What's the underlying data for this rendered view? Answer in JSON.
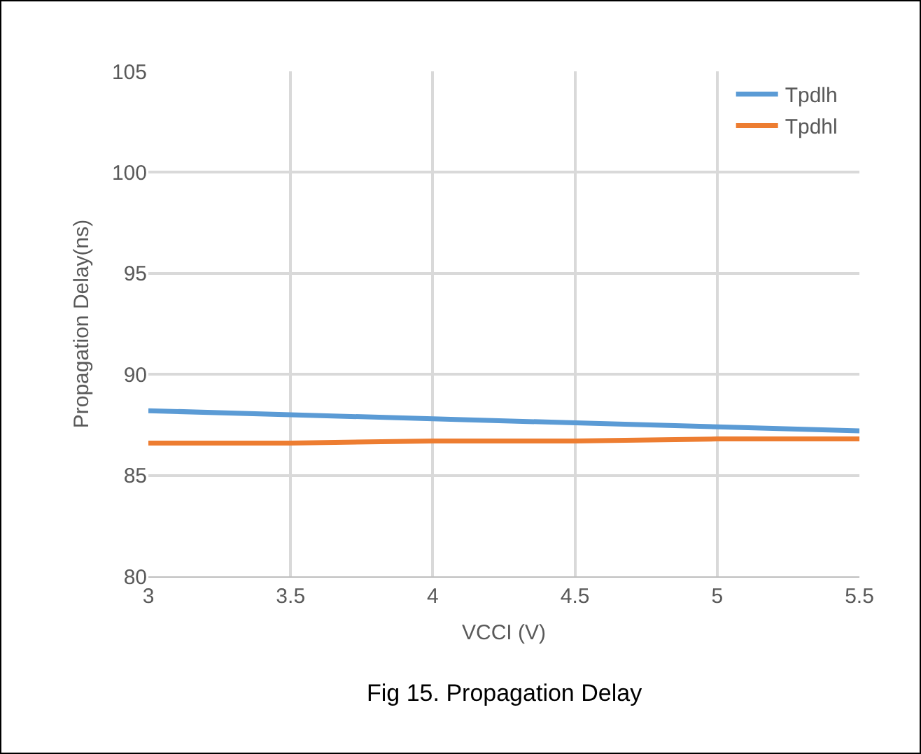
{
  "chart_data": {
    "type": "line",
    "xlabel": "VCCI (V)",
    "ylabel": "Propagation Delay(ns)",
    "x": [
      3,
      3.5,
      4,
      4.5,
      5,
      5.5
    ],
    "series": [
      {
        "name": "Tpdlh",
        "color": "#5b9bd5",
        "values": [
          88.2,
          88.0,
          87.8,
          87.6,
          87.4,
          87.2
        ]
      },
      {
        "name": "Tpdhl",
        "color": "#ed7d31",
        "values": [
          86.6,
          86.6,
          86.7,
          86.7,
          86.8,
          86.8
        ]
      }
    ],
    "xlim": [
      3,
      5.5
    ],
    "xticks": [
      3,
      3.5,
      4,
      4.5,
      5,
      5.5
    ],
    "ylim": [
      80,
      105
    ],
    "yticks": [
      80,
      85,
      90,
      95,
      100,
      105
    ],
    "grid": true,
    "legend": "top right",
    "marker": "none",
    "line_style": "solid",
    "annotations": [
      "Fig 15. Propagation Delay"
    ]
  }
}
